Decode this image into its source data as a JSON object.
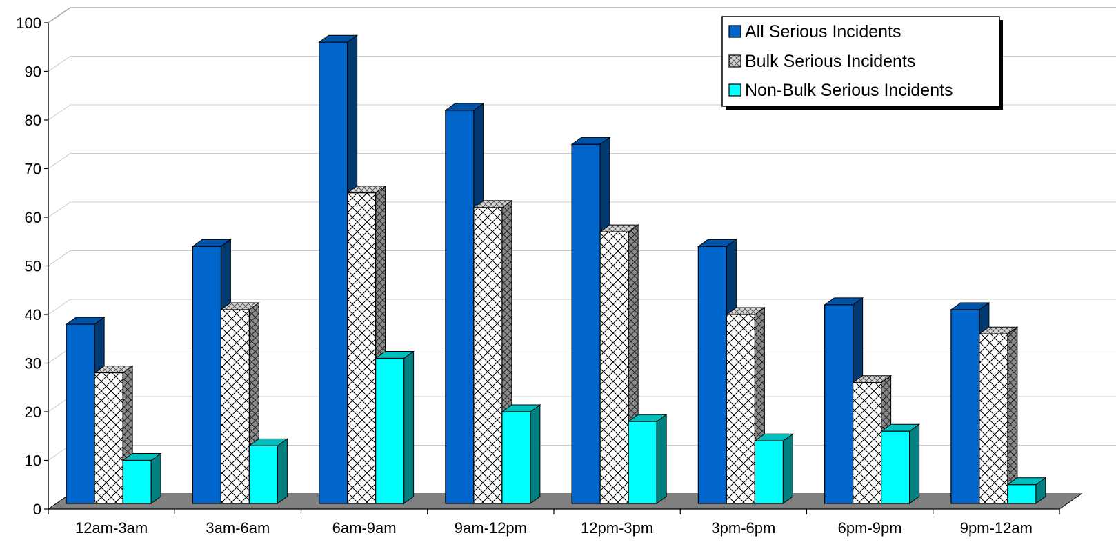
{
  "chart_data": {
    "type": "bar",
    "title": "",
    "xlabel": "",
    "ylabel": "",
    "ylim": [
      0,
      100
    ],
    "yticks": [
      0,
      10,
      20,
      30,
      40,
      50,
      60,
      70,
      80,
      90,
      100
    ],
    "categories": [
      "12am-3am",
      "3am-6am",
      "6am-9am",
      "9am-12pm",
      "12pm-3pm",
      "3pm-6pm",
      "6pm-9pm",
      "9pm-12am"
    ],
    "series": [
      {
        "name": "All Serious Incidents",
        "values": [
          38,
          54,
          96,
          82,
          75,
          54,
          42,
          41
        ],
        "color": "#0066cc",
        "side_color": "#003a70",
        "top_color": "#0054a8",
        "pattern": "solid"
      },
      {
        "name": "Bulk Serious Incidents",
        "values": [
          28,
          41,
          65,
          62,
          57,
          40,
          26,
          36
        ],
        "color": "#ffffff",
        "side_color": "#7a7a7a",
        "top_color": "#cfcfcf",
        "pattern": "crosshatch"
      },
      {
        "name": "Non-Bulk Serious Incidents",
        "values": [
          10,
          13,
          31,
          20,
          18,
          14,
          16,
          5
        ],
        "color": "#00ffff",
        "side_color": "#008080",
        "top_color": "#00bfbf",
        "pattern": "solid"
      }
    ],
    "grid": true,
    "legend_position": "top-right",
    "floor_color": "#808080",
    "wall_color": "#ffffff"
  }
}
